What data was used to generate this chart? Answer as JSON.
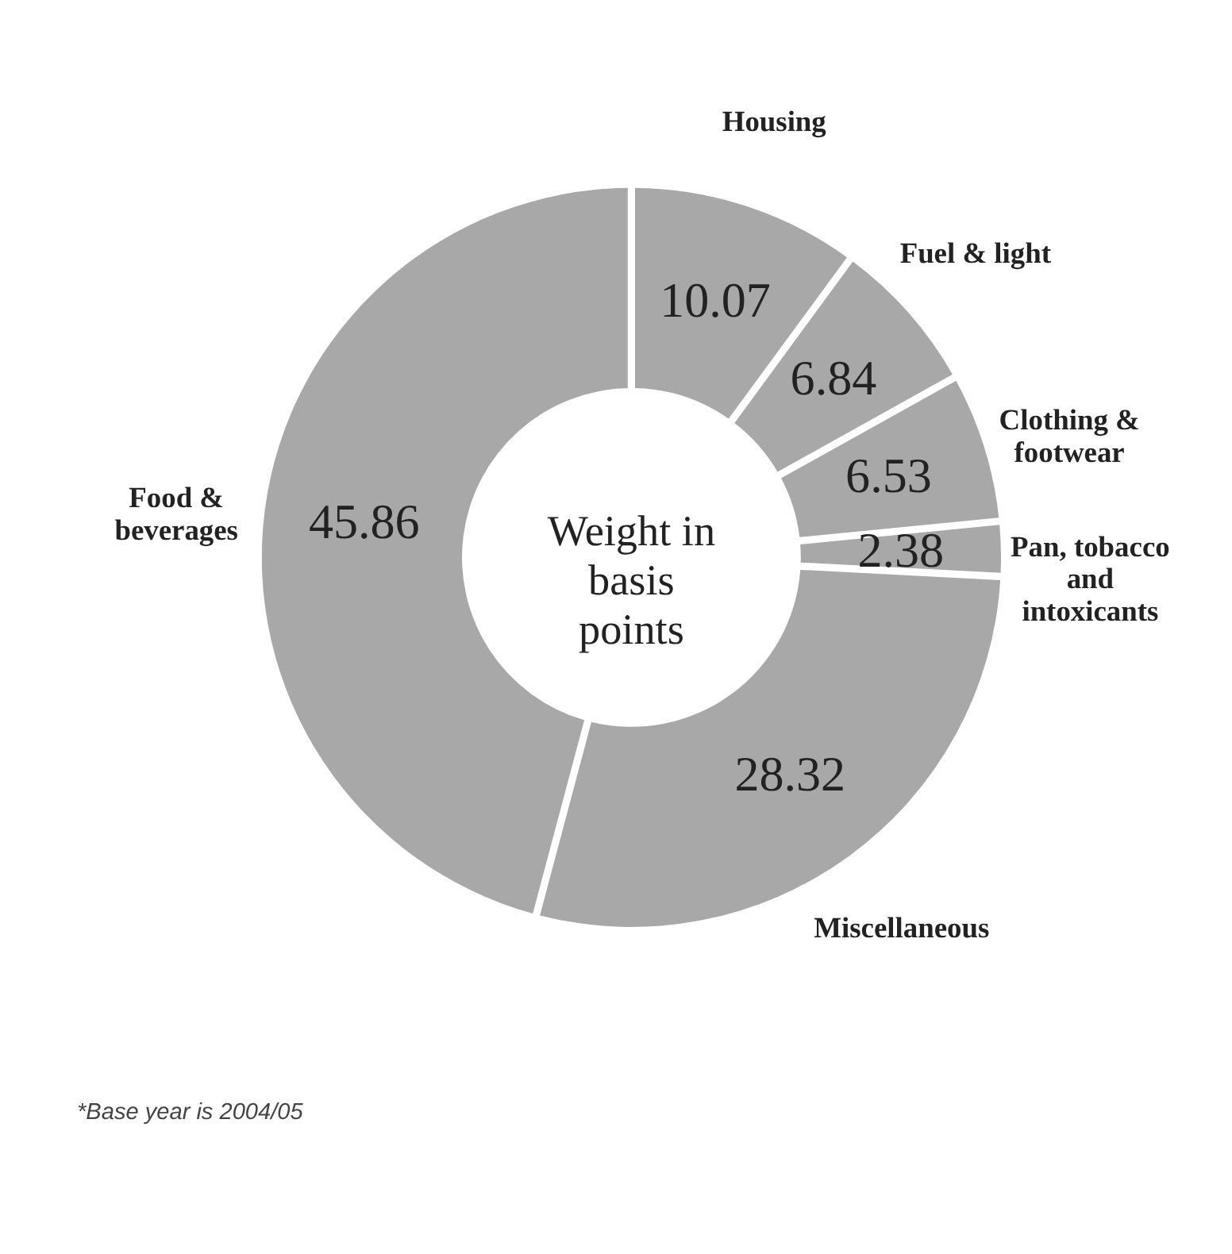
{
  "chart_data": {
    "type": "donut",
    "title": "Weight in basis points",
    "categories": [
      "Housing",
      "Fuel & light",
      "Clothing & footwear",
      "Pan, tobacco and intoxicants",
      "Miscellaneous",
      "Food & beverages"
    ],
    "values": [
      10.07,
      6.84,
      6.53,
      2.38,
      28.32,
      45.86
    ],
    "colors": [
      "#a8a8a8",
      "#a8a8a8",
      "#a8a8a8",
      "#a8a8a8",
      "#a8a8a8",
      "#a8a8a8"
    ],
    "data_labels": true,
    "annotations": [
      "*Base year is 2004/05"
    ]
  }
}
